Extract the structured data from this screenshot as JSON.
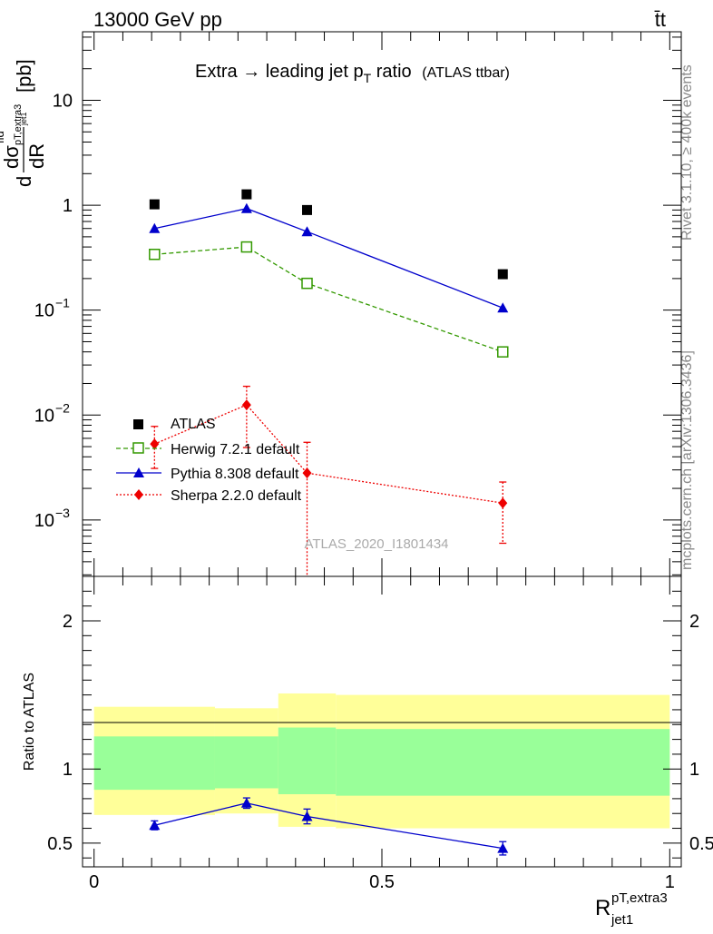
{
  "header": {
    "left": "13000 GeV pp",
    "right": "t̄t"
  },
  "title": {
    "main": "Extra → leading jet p",
    "sub": "T",
    "rest": " ratio",
    "tag": "(ATLAS ttbar)"
  },
  "side_labels": {
    "rivet": "Rivet 3.1.10, ≥ 400k events",
    "mcplots": "mcplots.cern.ch [arXiv:1306.3436]"
  },
  "watermark": "ATLAS_2020_I1801434",
  "axis": {
    "y_top_label": {
      "d": "d",
      "dsigma": "dσ",
      "fid_sup": "fid",
      "dR": "dR",
      "sub1": "pT,extra3",
      "sub2": "jet1",
      "unit": "[pb]"
    },
    "y_bottom_label": "Ratio to ATLAS",
    "x_label": {
      "main": "R",
      "sup": "pT,extra3",
      "sub": "jet1"
    },
    "top_ticks": [
      "10",
      "1",
      "10",
      "10",
      "10"
    ],
    "top_tick_exps": [
      "",
      "",
      "−1",
      "−2",
      "−3"
    ],
    "bottom_ticks": [
      "2",
      "1",
      "0.5"
    ],
    "x_ticks": [
      "0",
      "0.5",
      "1"
    ]
  },
  "legend": {
    "atlas": "ATLAS",
    "herwig": "Herwig 7.2.1 default",
    "pythia": "Pythia 8.308 default",
    "sherpa": "Sherpa 2.2.0 default"
  },
  "colors": {
    "atlas": "#000000",
    "herwig": "#339900",
    "pythia": "#0000cc",
    "sherpa": "#ee0000",
    "band_inner": "#99ff99",
    "band_outer": "#ffff99"
  },
  "chart_data": {
    "type": "scatter",
    "top_panel": {
      "x_range": [
        -0.02,
        1.02
      ],
      "y_range_log": [
        0.00029,
        45
      ],
      "y_scale": "log",
      "bins": [
        [
          0.0,
          0.21
        ],
        [
          0.21,
          0.32
        ],
        [
          0.32,
          0.42
        ],
        [
          0.42,
          1.0
        ]
      ],
      "series": [
        {
          "name": "ATLAS",
          "x": [
            0.105,
            0.265,
            0.37,
            0.71
          ],
          "y": [
            1.02,
            1.27,
            0.9,
            0.22
          ]
        },
        {
          "name": "Herwig 7.2.1 default",
          "x": [
            0.105,
            0.265,
            0.37,
            0.71
          ],
          "y": [
            0.34,
            0.4,
            0.18,
            0.04
          ]
        },
        {
          "name": "Pythia 8.308 default",
          "x": [
            0.105,
            0.265,
            0.37,
            0.71
          ],
          "y": [
            0.6,
            0.93,
            0.56,
            0.105
          ]
        },
        {
          "name": "Sherpa 2.2.0 default",
          "x": [
            0.105,
            0.265,
            0.37,
            0.71
          ],
          "y": [
            0.0053,
            0.0125,
            0.0028,
            0.00145
          ],
          "err_lo": [
            0.0022,
            0.0076,
            0.0027,
            0.00085
          ],
          "err_hi": [
            0.0025,
            0.0063,
            0.0027,
            0.00085
          ]
        }
      ]
    },
    "bottom_panel": {
      "x_range": [
        -0.02,
        1.02
      ],
      "y_range": [
        0.34,
        2.3
      ],
      "bands": {
        "outer": [
          [
            0.69,
            1.42
          ],
          [
            0.7,
            1.41
          ],
          [
            0.61,
            1.51
          ],
          [
            0.6,
            1.5
          ]
        ],
        "inner": [
          [
            0.86,
            1.22
          ],
          [
            0.87,
            1.22
          ],
          [
            0.83,
            1.28
          ],
          [
            0.82,
            1.27
          ]
        ]
      },
      "ratio_series": {
        "name": "Pythia 8.308 default",
        "x": [
          0.105,
          0.265,
          0.37,
          0.71
        ],
        "y": [
          0.62,
          0.77,
          0.68,
          0.465
        ],
        "err": [
          0.03,
          0.035,
          0.05,
          0.045
        ]
      }
    }
  }
}
